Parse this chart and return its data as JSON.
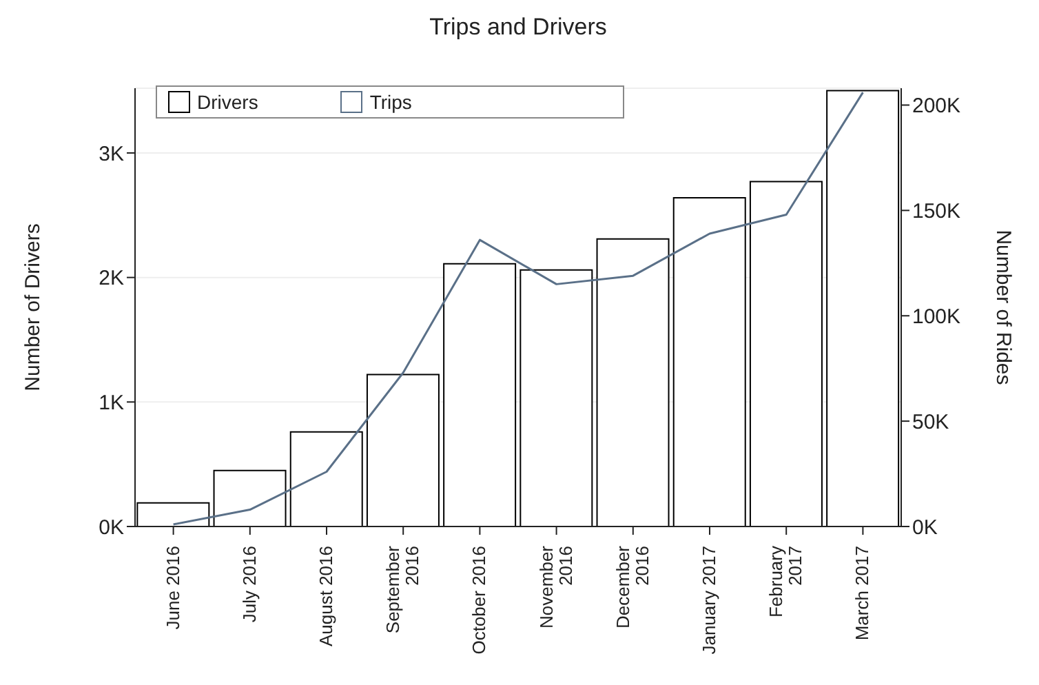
{
  "chart_data": {
    "type": "bar",
    "title": "Trips and Drivers",
    "ylabel": "Number of Drivers",
    "y2label": "Number of Rides",
    "categories": [
      "June 2016",
      "July 2016",
      "August 2016",
      "September 2016",
      "October 2016",
      "November 2016",
      "December 2016",
      "January 2017",
      "February 2017",
      "March 2017"
    ],
    "series": [
      {
        "name": "Drivers",
        "color": "#000000",
        "values": [
          190,
          450,
          760,
          1220,
          2110,
          2060,
          2310,
          2640,
          2770,
          3500
        ]
      },
      {
        "name": "Trips",
        "type": "line",
        "axis": "y2",
        "color": "#5a7088",
        "values": [
          1000,
          8000,
          26000,
          73000,
          136000,
          115000,
          119000,
          139000,
          148000,
          206000
        ]
      }
    ],
    "ylim": [
      0,
      3520
    ],
    "yticks": [
      {
        "value": 0,
        "label": "0K"
      },
      {
        "value": 1000,
        "label": "1K"
      },
      {
        "value": 2000,
        "label": "2K"
      },
      {
        "value": 3000,
        "label": "3K"
      }
    ],
    "y2lim": [
      0,
      208000
    ],
    "y2ticks": [
      {
        "value": 0,
        "label": "0K"
      },
      {
        "value": 50000,
        "label": "50K"
      },
      {
        "value": 100000,
        "label": "100K"
      },
      {
        "value": 150000,
        "label": "150K"
      },
      {
        "value": 200000,
        "label": "200K"
      }
    ],
    "grid": "y",
    "legend": "top left",
    "marker": "none",
    "line_style": "solid"
  }
}
